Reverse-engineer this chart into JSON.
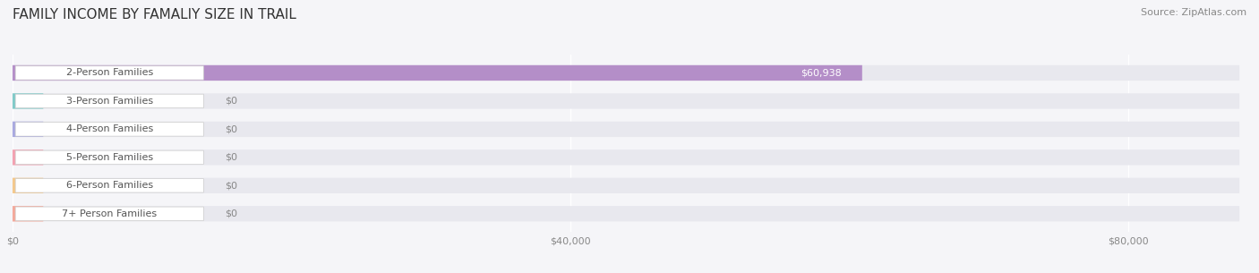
{
  "title": "FAMILY INCOME BY FAMALIY SIZE IN TRAIL",
  "source": "Source: ZipAtlas.com",
  "categories": [
    "2-Person Families",
    "3-Person Families",
    "4-Person Families",
    "5-Person Families",
    "6-Person Families",
    "7+ Person Families"
  ],
  "values": [
    60938,
    0,
    0,
    0,
    0,
    0
  ],
  "bar_colors": [
    "#b48ec8",
    "#7ecac8",
    "#a8a8e0",
    "#f4a0b0",
    "#f5c88a",
    "#f5a89a"
  ],
  "value_labels": [
    "$60,938",
    "$0",
    "$0",
    "$0",
    "$0",
    "$0"
  ],
  "xlim": [
    0,
    88000
  ],
  "xticks": [
    0,
    40000,
    80000
  ],
  "xtick_labels": [
    "$0",
    "$40,000",
    "$80,000"
  ],
  "bar_height": 0.55,
  "background_color": "#f5f5f8",
  "bar_background_color": "#e8e8ee",
  "title_fontsize": 11,
  "source_fontsize": 8,
  "label_fontsize": 8,
  "value_fontsize": 8
}
